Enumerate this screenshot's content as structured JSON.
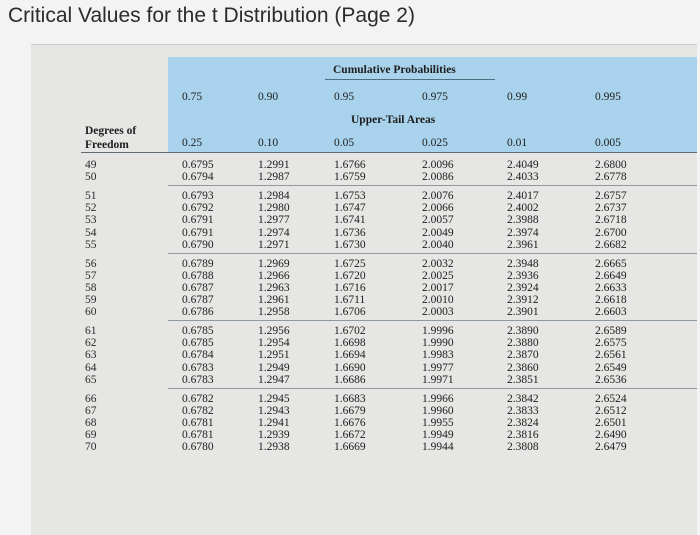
{
  "page": {
    "title": "Critical Values for the t Distribution (Page 2)"
  },
  "table": {
    "cumulative_label": "Cumulative Probabilities",
    "cumulative_probs": [
      "0.75",
      "0.90",
      "0.95",
      "0.975",
      "0.99",
      "0.995"
    ],
    "upper_tail_label": "Upper-Tail Areas",
    "df_label_line1": "Degrees of",
    "df_label_line2": "Freedom",
    "upper_tail_areas": [
      "0.25",
      "0.10",
      "0.05",
      "0.025",
      "0.01",
      "0.005"
    ],
    "rows": [
      [
        "49",
        "0.6795",
        "1.2991",
        "1.6766",
        "2.0096",
        "2.4049",
        "2.6800"
      ],
      [
        "50",
        "0.6794",
        "1.2987",
        "1.6759",
        "2.0086",
        "2.4033",
        "2.6778"
      ],
      [
        "51",
        "0.6793",
        "1.2984",
        "1.6753",
        "2.0076",
        "2.4017",
        "2.6757"
      ],
      [
        "52",
        "0.6792",
        "1.2980",
        "1.6747",
        "2.0066",
        "2.4002",
        "2.6737"
      ],
      [
        "53",
        "0.6791",
        "1.2977",
        "1.6741",
        "2.0057",
        "2.3988",
        "2.6718"
      ],
      [
        "54",
        "0.6791",
        "1.2974",
        "1.6736",
        "2.0049",
        "2.3974",
        "2.6700"
      ],
      [
        "55",
        "0.6790",
        "1.2971",
        "1.6730",
        "2.0040",
        "2.3961",
        "2.6682"
      ],
      [
        "56",
        "0.6789",
        "1.2969",
        "1.6725",
        "2.0032",
        "2.3948",
        "2.6665"
      ],
      [
        "57",
        "0.6788",
        "1.2966",
        "1.6720",
        "2.0025",
        "2.3936",
        "2.6649"
      ],
      [
        "58",
        "0.6787",
        "1.2963",
        "1.6716",
        "2.0017",
        "2.3924",
        "2.6633"
      ],
      [
        "59",
        "0.6787",
        "1.2961",
        "1.6711",
        "2.0010",
        "2.3912",
        "2.6618"
      ],
      [
        "60",
        "0.6786",
        "1.2958",
        "1.6706",
        "2.0003",
        "2.3901",
        "2.6603"
      ],
      [
        "61",
        "0.6785",
        "1.2956",
        "1.6702",
        "1.9996",
        "2.3890",
        "2.6589"
      ],
      [
        "62",
        "0.6785",
        "1.2954",
        "1.6698",
        "1.9990",
        "2.3880",
        "2.6575"
      ],
      [
        "63",
        "0.6784",
        "1.2951",
        "1.6694",
        "1.9983",
        "2.3870",
        "2.6561"
      ],
      [
        "64",
        "0.6783",
        "1.2949",
        "1.6690",
        "1.9977",
        "2.3860",
        "2.6549"
      ],
      [
        "65",
        "0.6783",
        "1.2947",
        "1.6686",
        "1.9971",
        "2.3851",
        "2.6536"
      ],
      [
        "66",
        "0.6782",
        "1.2945",
        "1.6683",
        "1.9966",
        "2.3842",
        "2.6524"
      ],
      [
        "67",
        "0.6782",
        "1.2943",
        "1.6679",
        "1.9960",
        "2.3833",
        "2.6512"
      ],
      [
        "68",
        "0.6781",
        "1.2941",
        "1.6676",
        "1.9955",
        "2.3824",
        "2.6501"
      ],
      [
        "69",
        "0.6781",
        "1.2939",
        "1.6672",
        "1.9949",
        "2.3816",
        "2.6490"
      ],
      [
        "70",
        "0.6780",
        "1.2938",
        "1.6669",
        "1.9944",
        "2.3808",
        "2.6479"
      ]
    ]
  }
}
